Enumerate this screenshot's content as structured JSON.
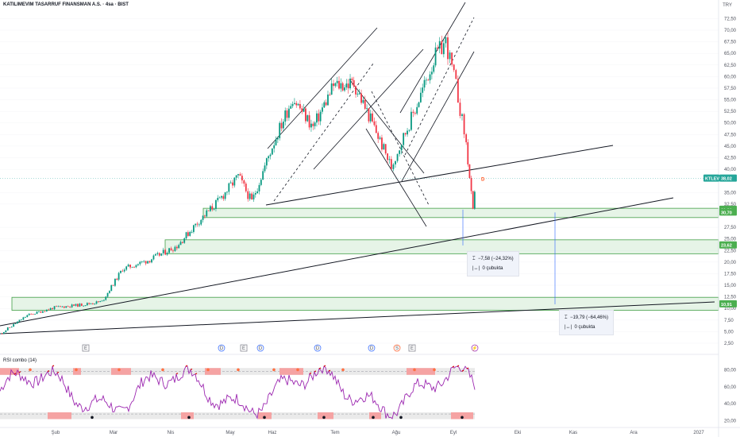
{
  "header": {
    "title": "KATILIMEVIM TASARRUF FINANSMAN A.S. · 4sa · BIST",
    "currency": "TRY"
  },
  "price_tags": [
    {
      "label": "KTLEV",
      "value": "38,02",
      "color": "#26a69a"
    },
    {
      "value": "31,30",
      "color": "#4caf50"
    },
    {
      "value": "30,70",
      "color": "#4caf50"
    },
    {
      "value": "23,62",
      "color": "#4caf50"
    },
    {
      "value": "10,91",
      "color": "#4caf50"
    }
  ],
  "measurements": [
    {
      "change": "−7,58 (−24,32%)",
      "bars": "0 çubukta"
    },
    {
      "change": "−19,79 (−64,46%)",
      "bars": "0 çubukta"
    }
  ],
  "events": [
    "E",
    "D",
    "E",
    "D",
    "D",
    "D",
    "S",
    "E",
    "⚡"
  ],
  "rsi": {
    "label": "RSI combo (14)",
    "ticks": [
      "80,00",
      "60,00",
      "40,00",
      "20,00"
    ]
  },
  "chart_data": {
    "type": "candlestick",
    "y_axis": {
      "ticks": [
        "72,50",
        "70,00",
        "67,50",
        "65,00",
        "62,50",
        "60,00",
        "57,50",
        "55,00",
        "52,50",
        "50,00",
        "47,50",
        "45,00",
        "42,50",
        "40,00",
        "35,00",
        "32,50",
        "27,50",
        "25,00",
        "22,50",
        "20,00",
        "17,50",
        "15,00",
        "12,50",
        "10,00",
        "7,50",
        "5,00",
        "2,50"
      ],
      "range": [
        2.5,
        72.5
      ]
    },
    "x_axis": {
      "ticks": [
        "Şub",
        "Mar",
        "Nis",
        "May",
        "Haz",
        "Tem",
        "Ağu",
        "Eyl",
        "Eki",
        "Kas",
        "Ara",
        "2027"
      ]
    },
    "price_path": [
      {
        "x": 0,
        "y": 4.5
      },
      {
        "x": 0.04,
        "y": 8.5
      },
      {
        "x": 0.08,
        "y": 10.2
      },
      {
        "x": 0.12,
        "y": 10.8
      },
      {
        "x": 0.15,
        "y": 11.5
      },
      {
        "x": 0.18,
        "y": 18.5
      },
      {
        "x": 0.22,
        "y": 20.5
      },
      {
        "x": 0.26,
        "y": 23.5
      },
      {
        "x": 0.29,
        "y": 28.5
      },
      {
        "x": 0.32,
        "y": 33.0
      },
      {
        "x": 0.35,
        "y": 38.5
      },
      {
        "x": 0.37,
        "y": 33.0
      },
      {
        "x": 0.4,
        "y": 45.0
      },
      {
        "x": 0.43,
        "y": 55.5
      },
      {
        "x": 0.46,
        "y": 49.0
      },
      {
        "x": 0.49,
        "y": 58.0
      },
      {
        "x": 0.52,
        "y": 58.5
      },
      {
        "x": 0.55,
        "y": 49.0
      },
      {
        "x": 0.575,
        "y": 40.5
      },
      {
        "x": 0.59,
        "y": 46.0
      },
      {
        "x": 0.61,
        "y": 53.0
      },
      {
        "x": 0.64,
        "y": 64.5
      },
      {
        "x": 0.655,
        "y": 67.5
      },
      {
        "x": 0.67,
        "y": 58.0
      },
      {
        "x": 0.685,
        "y": 45.5
      },
      {
        "x": 0.695,
        "y": 30.7
      },
      {
        "x": 0.7,
        "y": 38.0
      }
    ]
  }
}
